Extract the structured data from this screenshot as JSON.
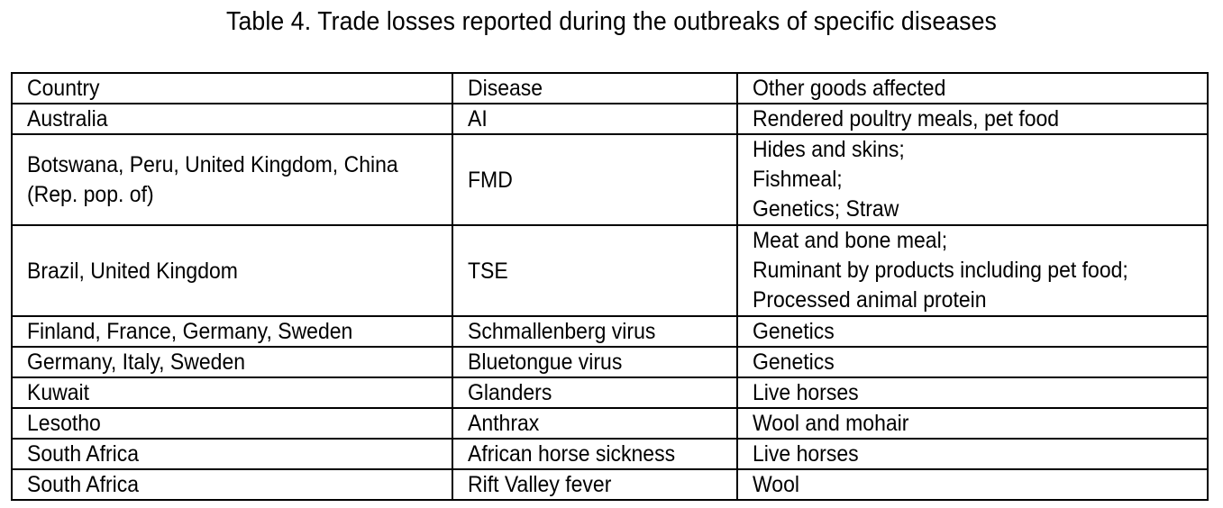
{
  "caption": "Table 4. Trade losses reported during the outbreaks of specific diseases",
  "table": {
    "headers": [
      "Country",
      "Disease",
      "Other goods affected"
    ],
    "rows": [
      {
        "country": [
          "Australia"
        ],
        "disease": "AI",
        "goods": [
          "Rendered poultry meals, pet food"
        ]
      },
      {
        "country": [
          "Botswana, Peru, United Kingdom, China",
          "(Rep. pop. of)"
        ],
        "disease": "FMD",
        "goods": [
          "Hides and skins;",
          "Fishmeal;",
          "Genetics; Straw"
        ]
      },
      {
        "country": [
          "Brazil, United Kingdom"
        ],
        "disease": "TSE",
        "goods": [
          "Meat and bone meal;",
          "Ruminant by products including pet food;",
          "Processed animal protein"
        ]
      },
      {
        "country": [
          "Finland, France, Germany, Sweden"
        ],
        "disease": "Schmallenberg virus",
        "goods": [
          "Genetics"
        ]
      },
      {
        "country": [
          "Germany, Italy, Sweden"
        ],
        "disease": "Bluetongue virus",
        "goods": [
          "Genetics"
        ]
      },
      {
        "country": [
          "Kuwait"
        ],
        "disease": "Glanders",
        "goods": [
          "Live horses"
        ]
      },
      {
        "country": [
          "Lesotho"
        ],
        "disease": "Anthrax",
        "goods": [
          "Wool and mohair"
        ]
      },
      {
        "country": [
          "South Africa"
        ],
        "disease": "African horse sickness",
        "goods": [
          "Live horses"
        ]
      },
      {
        "country": [
          "South Africa"
        ],
        "disease": "Rift Valley fever",
        "goods": [
          "Wool"
        ]
      }
    ]
  }
}
